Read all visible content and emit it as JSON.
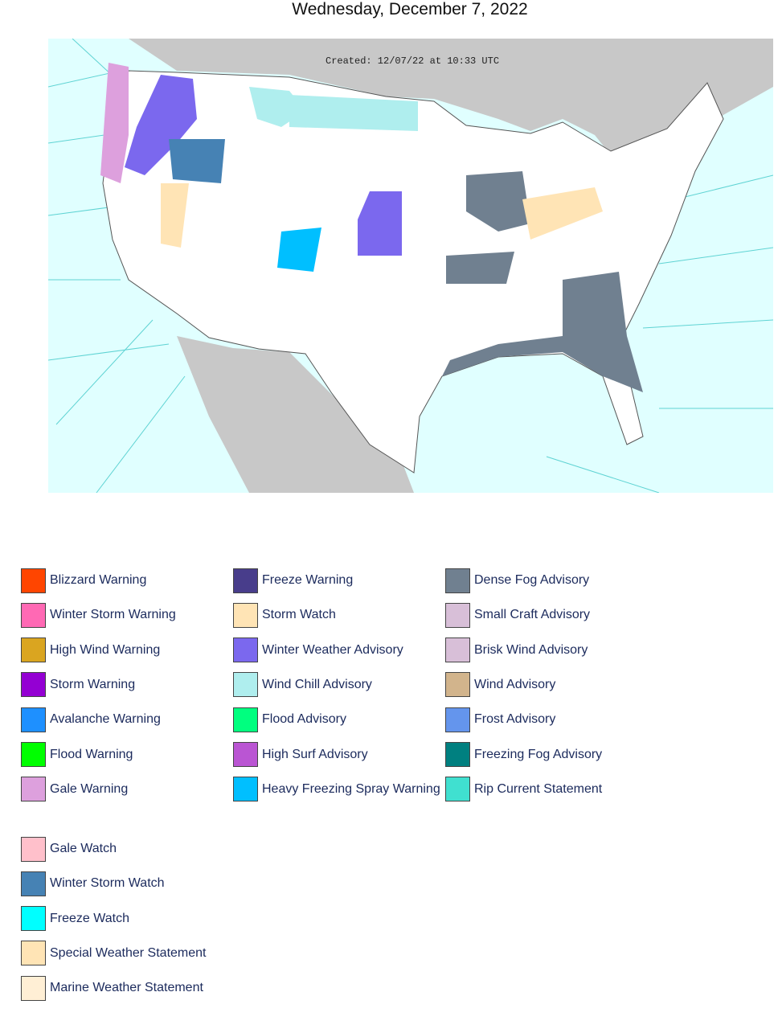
{
  "header": {
    "title": "Wednesday, December 7, 2022"
  },
  "map": {
    "created": "Created: 12/07/22 at 10:33 UTC"
  },
  "legend": {
    "columns": [
      [
        {
          "label": "Blizzard Warning",
          "color": "#FF4500"
        },
        {
          "label": "Winter Storm Warning",
          "color": "#FF69B4"
        },
        {
          "label": "High Wind Warning",
          "color": "#DAA520"
        },
        {
          "label": "Storm Warning",
          "color": "#9400D3"
        },
        {
          "label": "Avalanche Warning",
          "color": "#1E90FF"
        },
        {
          "label": "Flood Warning",
          "color": "#00FF00"
        },
        {
          "label": "Gale Warning",
          "color": "#DDA0DD"
        }
      ],
      [
        {
          "label": "Freeze Warning",
          "color": "#483D8B"
        },
        {
          "label": "Storm Watch",
          "color": "#FFE4B5"
        },
        {
          "label": "Winter Weather Advisory",
          "color": "#7B68EE"
        },
        {
          "label": "Wind Chill Advisory",
          "color": "#AFEEEE"
        },
        {
          "label": "Flood Advisory",
          "color": "#00FF7F"
        },
        {
          "label": "High Surf Advisory",
          "color": "#BA55D3"
        },
        {
          "label": "Heavy Freezing Spray Warning",
          "color": "#00BFFF"
        }
      ],
      [
        {
          "label": "Dense Fog Advisory",
          "color": "#708090"
        },
        {
          "label": "Small Craft Advisory",
          "color": "#D8BFD8"
        },
        {
          "label": "Brisk Wind Advisory",
          "color": "#D8BFD8"
        },
        {
          "label": "Wind Advisory",
          "color": "#D2B48C"
        },
        {
          "label": "Frost Advisory",
          "color": "#6495ED"
        },
        {
          "label": "Freezing Fog Advisory",
          "color": "#008080"
        },
        {
          "label": "Rip Current Statement",
          "color": "#40E0D0"
        }
      ]
    ],
    "watches": [
      {
        "label": "Gale Watch",
        "color": "#FFC0CB"
      },
      {
        "label": "Winter Storm Watch",
        "color": "#4682B4"
      },
      {
        "label": "Freeze Watch",
        "color": "#00FFFF"
      },
      {
        "label": "Special Weather Statement",
        "color": "#FFE4B5"
      },
      {
        "label": "Marine Weather Statement",
        "color": "#FFEFD5"
      }
    ]
  }
}
